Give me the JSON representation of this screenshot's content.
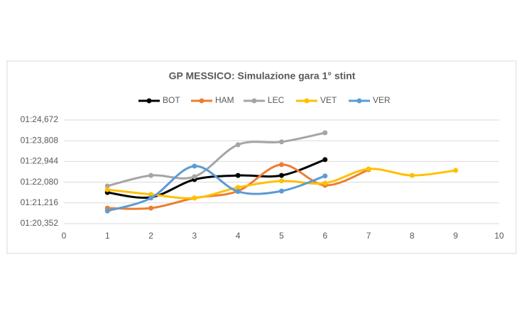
{
  "chart_data": {
    "type": "line",
    "title": "GP MESSICO: Simulazione gara 1° stint",
    "x": [
      1,
      2,
      3,
      4,
      5,
      6,
      7,
      8,
      9
    ],
    "xlim": [
      0,
      10
    ],
    "xticks": [
      0,
      1,
      2,
      3,
      4,
      5,
      6,
      7,
      8,
      9,
      10
    ],
    "ylim": [
      80.352,
      84.672
    ],
    "yticks": [
      {
        "value": 80.352,
        "label": "01:20,352"
      },
      {
        "value": 81.216,
        "label": "01:21,216"
      },
      {
        "value": 82.08,
        "label": "01:22,080"
      },
      {
        "value": 82.944,
        "label": "01:22,944"
      },
      {
        "value": 83.808,
        "label": "01:23,808"
      },
      {
        "value": 84.672,
        "label": "01:24,672"
      }
    ],
    "grid": true,
    "legend": "top",
    "smooth": true,
    "series": [
      {
        "name": "BOT",
        "color": "#000000",
        "values": [
          81.65,
          81.45,
          82.19,
          82.36,
          82.36,
          83.02,
          null,
          null,
          null
        ]
      },
      {
        "name": "HAM",
        "color": "#ed7d31",
        "values": [
          81.0,
          81.0,
          81.42,
          81.71,
          82.81,
          81.95,
          82.6,
          null,
          null
        ]
      },
      {
        "name": "LEC",
        "color": "#a5a5a5",
        "values": [
          81.92,
          82.36,
          82.31,
          83.64,
          83.76,
          84.14,
          null,
          null,
          null
        ]
      },
      {
        "name": "VET",
        "color": "#ffc000",
        "values": [
          81.77,
          81.57,
          81.42,
          81.86,
          82.13,
          82.04,
          82.63,
          82.36,
          82.57
        ]
      },
      {
        "name": "VER",
        "color": "#5b9bd5",
        "values": [
          80.88,
          81.42,
          82.75,
          81.69,
          81.71,
          82.34,
          null,
          null,
          null
        ]
      }
    ]
  }
}
